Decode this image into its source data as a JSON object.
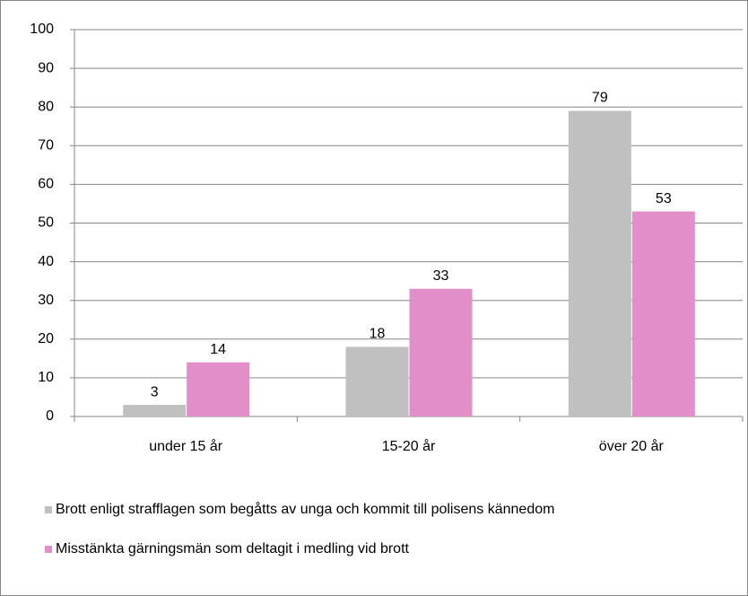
{
  "chart_data": {
    "type": "bar",
    "categories": [
      "under 15 år",
      "15-20 år",
      "över 20 år"
    ],
    "series": [
      {
        "name": "Brott enligt strafflagen som begåtts av unga och kommit till polisens kännedom",
        "color": "#c0c0c0",
        "values": [
          3,
          18,
          79
        ]
      },
      {
        "name": "Misstänkta gärningsmän som deltagit i medling vid brott",
        "color": "#e28ec8",
        "values": [
          14,
          33,
          53
        ]
      }
    ],
    "ylim": [
      0,
      100
    ],
    "yticks": [
      0,
      10,
      20,
      30,
      40,
      50,
      60,
      70,
      80,
      90,
      100
    ],
    "grid": true,
    "legend": "bottom"
  }
}
